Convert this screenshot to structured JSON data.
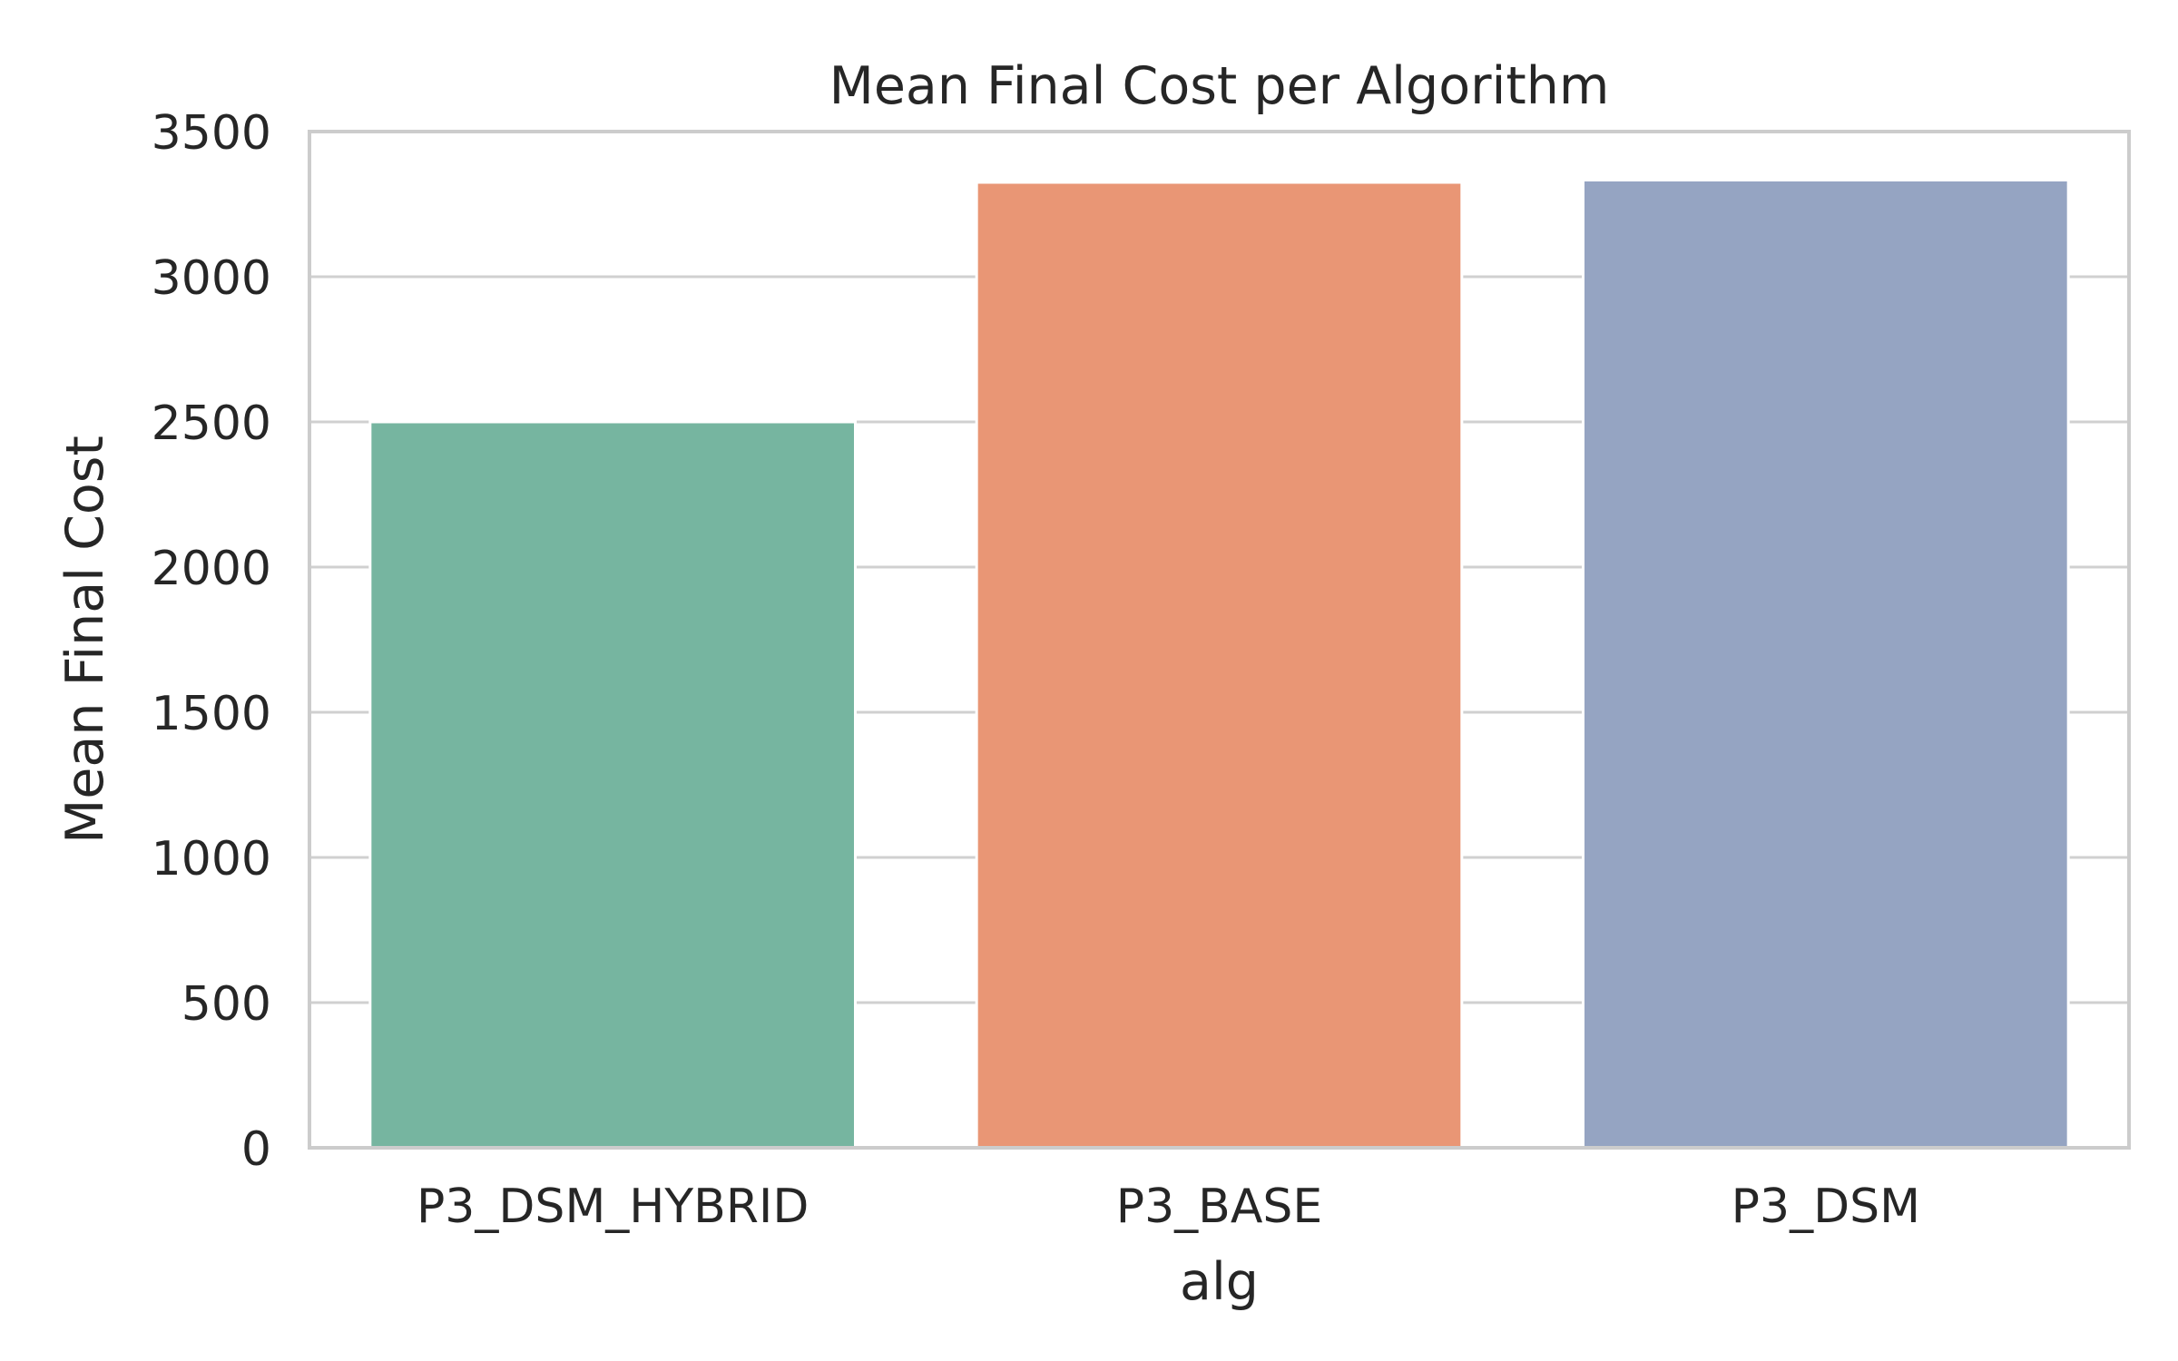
{
  "chart_data": {
    "type": "bar",
    "title": "Mean Final Cost per Algorithm",
    "xlabel": "alg",
    "ylabel": "Mean Final Cost",
    "categories": [
      "P3_DSM_HYBRID",
      "P3_BASE",
      "P3_DSM"
    ],
    "values": [
      2500,
      3325,
      3333
    ],
    "ylim": [
      0,
      3500
    ],
    "yticks": [
      0,
      500,
      1000,
      1500,
      2000,
      2500,
      3000,
      3500
    ],
    "ytick_labels": [
      "0",
      "500",
      "1000",
      "1500",
      "2000",
      "2500",
      "3000",
      "3500"
    ],
    "colors": [
      "#76b5a0",
      "#e99675",
      "#95a4c2"
    ],
    "grid": "horizontal",
    "legend": "none"
  },
  "style": {
    "background": "#ffffff",
    "grid_color": "#d0d0d0",
    "spine_color": "#cccccc",
    "text_color": "#262626"
  }
}
